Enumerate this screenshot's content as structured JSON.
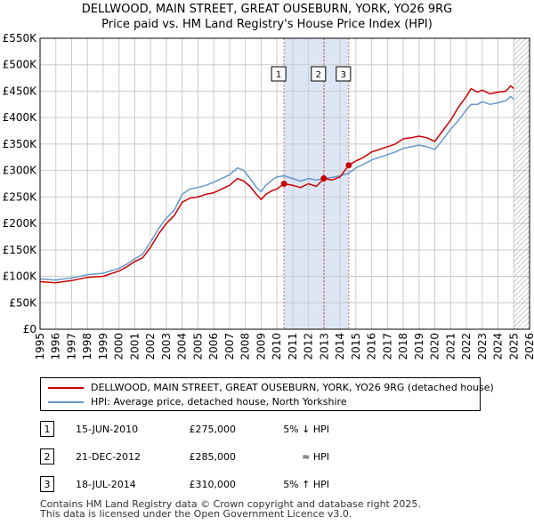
{
  "title_line1": "DELLWOOD, MAIN STREET, GREAT OUSEBURN, YORK, YO26 9RG",
  "title_line2": "Price paid vs. HM Land Registry's House Price Index (HPI)",
  "legend": {
    "property_label": "DELLWOOD, MAIN STREET, GREAT OUSEBURN, YORK, YO26 9RG (detached house)",
    "hpi_label": "HPI: Average price, detached house, North Yorkshire"
  },
  "colors": {
    "property": "#cc0000",
    "hpi": "#6699cc",
    "shade": "#dde6f5",
    "grid": "#cccccc",
    "hatch": "#999999"
  },
  "sales": [
    {
      "num": "1",
      "date": "15-JUN-2010",
      "price": "£275,000",
      "relation": "5% ↓ HPI"
    },
    {
      "num": "2",
      "date": "21-DEC-2012",
      "price": "£285,000",
      "relation": "≈ HPI"
    },
    {
      "num": "3",
      "date": "18-JUL-2014",
      "price": "£310,000",
      "relation": "5% ↑ HPI"
    }
  ],
  "footer_line1": "Contains HM Land Registry data © Crown copyright and database right 2025.",
  "footer_line2": "This data is licensed under the Open Government Licence v3.0.",
  "chart_data": {
    "type": "line",
    "title": "Price paid vs. HM Land Registry's House Price Index (HPI)",
    "xlabel": "",
    "ylabel": "",
    "xlim": [
      1995,
      2026
    ],
    "ylim": [
      0,
      550000
    ],
    "y_ticks": [
      0,
      50000,
      100000,
      150000,
      200000,
      250000,
      300000,
      350000,
      400000,
      450000,
      500000,
      550000
    ],
    "y_tick_labels": [
      "£0",
      "£50K",
      "£100K",
      "£150K",
      "£200K",
      "£250K",
      "£300K",
      "£350K",
      "£400K",
      "£450K",
      "£500K",
      "£550K"
    ],
    "x_ticks": [
      1995,
      1996,
      1997,
      1998,
      1999,
      2000,
      2001,
      2002,
      2003,
      2004,
      2005,
      2006,
      2007,
      2008,
      2009,
      2010,
      2011,
      2012,
      2013,
      2014,
      2015,
      2016,
      2017,
      2018,
      2019,
      2020,
      2021,
      2022,
      2023,
      2024,
      2025,
      2026
    ],
    "x_tick_labels": [
      "1995",
      "1996",
      "1997",
      "1998",
      "1999",
      "2000",
      "2001",
      "2002",
      "2003",
      "2004",
      "2005",
      "2006",
      "2007",
      "2008",
      "2009",
      "2010",
      "2011",
      "2012",
      "2013",
      "2014",
      "2015",
      "2016",
      "2017",
      "2018",
      "2019",
      "2020",
      "2021",
      "2022",
      "2023",
      "2024",
      "2025",
      "2026"
    ],
    "grid": true,
    "legend_position": "below",
    "shaded_range": [
      2010.45,
      2014.55
    ],
    "future_hatch_from": 2025.0,
    "series": [
      {
        "name": "DELLWOOD, MAIN STREET, GREAT OUSEBURN, YORK, YO26 9RG (detached house)",
        "color": "#cc0000",
        "x": [
          1995.0,
          1996.0,
          1997.0,
          1998.0,
          1999.0,
          2000.0,
          2000.5,
          2001.0,
          2001.5,
          2002.0,
          2002.5,
          2003.0,
          2003.5,
          2004.0,
          2004.5,
          2005.0,
          2005.5,
          2006.0,
          2006.5,
          2007.0,
          2007.5,
          2007.9,
          2008.3,
          2008.7,
          2009.0,
          2009.3,
          2009.7,
          2010.0,
          2010.45,
          2011.0,
          2011.5,
          2012.0,
          2012.5,
          2012.97,
          2013.5,
          2014.0,
          2014.55,
          2015.0,
          2015.5,
          2016.0,
          2016.5,
          2017.0,
          2017.5,
          2018.0,
          2018.5,
          2019.0,
          2019.5,
          2020.0,
          2020.5,
          2021.0,
          2021.5,
          2022.0,
          2022.3,
          2022.7,
          2023.0,
          2023.5,
          2024.0,
          2024.5,
          2024.8,
          2025.0
        ],
        "values": [
          90000,
          88000,
          92000,
          98000,
          100000,
          110000,
          118000,
          128000,
          135000,
          155000,
          180000,
          200000,
          215000,
          240000,
          248000,
          250000,
          255000,
          258000,
          265000,
          272000,
          285000,
          280000,
          270000,
          255000,
          245000,
          255000,
          262000,
          265000,
          275000,
          272000,
          268000,
          275000,
          270000,
          285000,
          282000,
          288000,
          310000,
          318000,
          325000,
          335000,
          340000,
          345000,
          350000,
          360000,
          362000,
          365000,
          362000,
          355000,
          375000,
          395000,
          420000,
          440000,
          455000,
          448000,
          452000,
          445000,
          448000,
          450000,
          460000,
          455000
        ]
      },
      {
        "name": "HPI: Average price, detached house, North Yorkshire",
        "color": "#6699cc",
        "x": [
          1995.0,
          1996.0,
          1997.0,
          1998.0,
          1999.0,
          2000.0,
          2000.5,
          2001.0,
          2001.5,
          2002.0,
          2002.5,
          2003.0,
          2003.5,
          2004.0,
          2004.5,
          2005.0,
          2005.5,
          2006.0,
          2006.5,
          2007.0,
          2007.5,
          2007.9,
          2008.3,
          2008.7,
          2009.0,
          2009.3,
          2009.7,
          2010.0,
          2010.45,
          2011.0,
          2011.5,
          2012.0,
          2012.5,
          2012.97,
          2013.5,
          2014.0,
          2014.55,
          2015.0,
          2015.5,
          2016.0,
          2016.5,
          2017.0,
          2017.5,
          2018.0,
          2018.5,
          2019.0,
          2019.5,
          2020.0,
          2020.5,
          2021.0,
          2021.5,
          2022.0,
          2022.3,
          2022.7,
          2023.0,
          2023.5,
          2024.0,
          2024.5,
          2024.8,
          2025.0
        ],
        "values": [
          95000,
          93000,
          97000,
          103000,
          106000,
          115000,
          123000,
          133000,
          142000,
          165000,
          190000,
          210000,
          225000,
          255000,
          265000,
          268000,
          272000,
          278000,
          285000,
          292000,
          305000,
          300000,
          285000,
          268000,
          260000,
          272000,
          282000,
          288000,
          290000,
          285000,
          280000,
          285000,
          282000,
          285000,
          287000,
          290000,
          295000,
          305000,
          312000,
          320000,
          325000,
          330000,
          335000,
          342000,
          345000,
          348000,
          345000,
          340000,
          358000,
          378000,
          395000,
          415000,
          425000,
          425000,
          430000,
          425000,
          428000,
          432000,
          440000,
          435000
        ]
      }
    ],
    "sale_markers": [
      {
        "label": "1",
        "x": 2010.45,
        "value": 275000
      },
      {
        "label": "2",
        "x": 2012.97,
        "value": 285000
      },
      {
        "label": "3",
        "x": 2014.55,
        "value": 310000
      }
    ]
  }
}
